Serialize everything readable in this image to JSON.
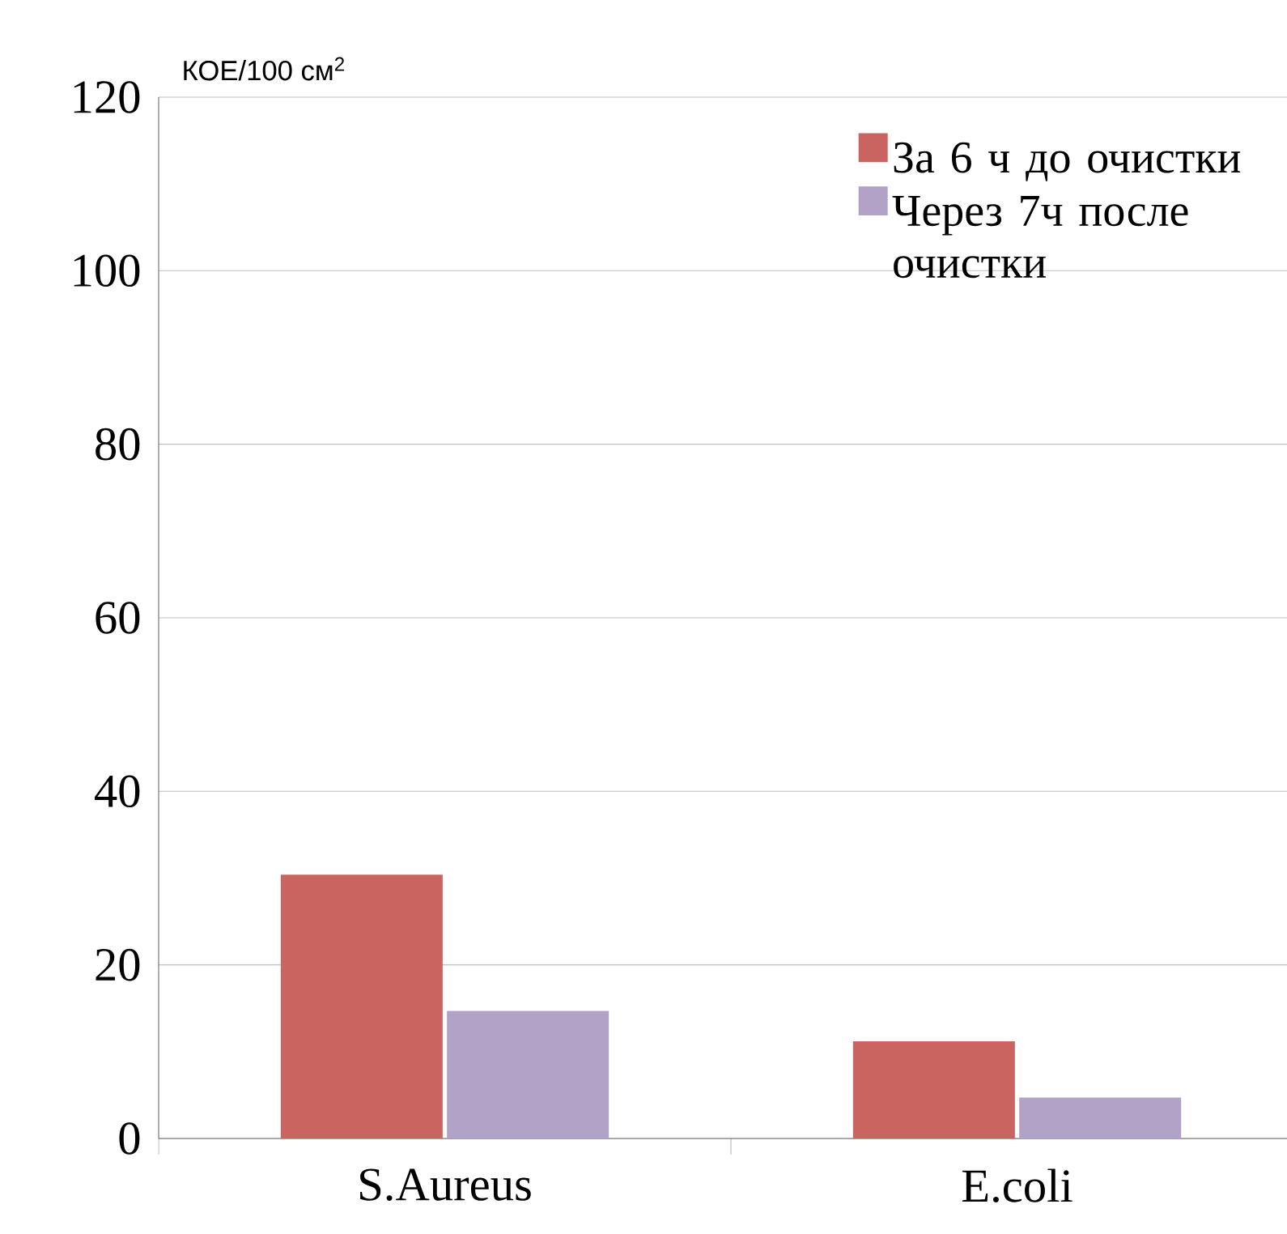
{
  "chart_data": {
    "type": "bar",
    "ylabel": "КОЕ/100 см$^{2}$",
    "categories": [
      "S.Aureus",
      "E.coli"
    ],
    "series": [
      {
        "name": "За 6 ч до очистки",
        "color": "#c96461",
        "values": [
          30.4,
          11.2
        ]
      },
      {
        "name": "Через 7ч после очистки",
        "color": "#b2a2c8",
        "values": [
          14.7,
          4.7
        ]
      }
    ],
    "ylim": [
      0,
      120
    ],
    "yticks": [
      0,
      20,
      40,
      60,
      80,
      100,
      120
    ],
    "grid": "y",
    "legend": "top right"
  }
}
